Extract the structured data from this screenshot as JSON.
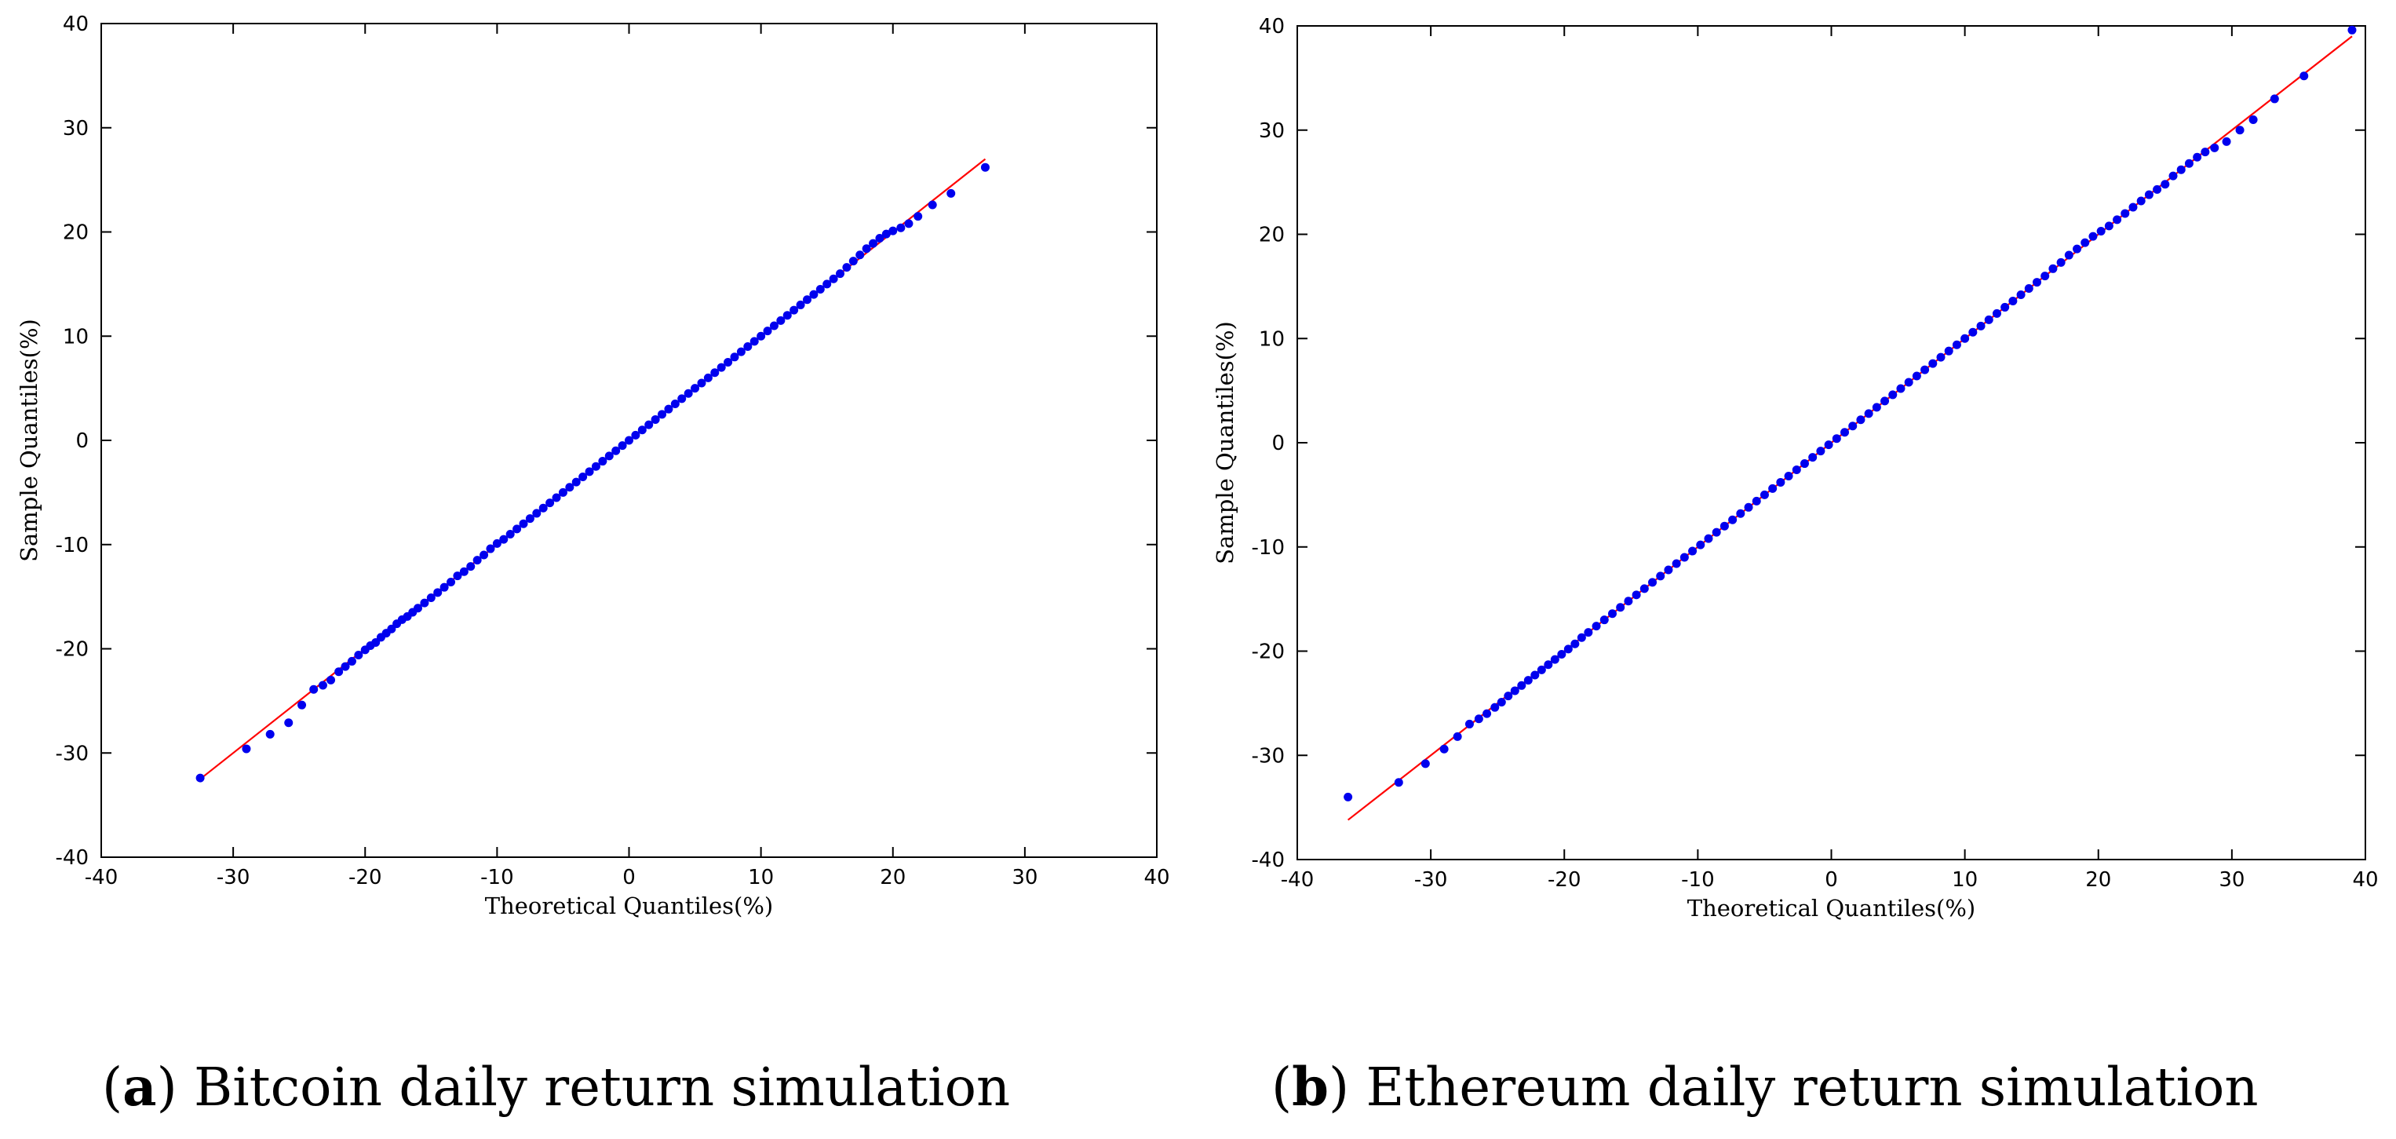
{
  "chart_data": [
    {
      "type": "scatter",
      "panel_letter": "a",
      "caption": "Bitcoin daily return simulation",
      "xlabel": "Theoretical Quantiles(%)",
      "ylabel": "Sample Quantiles(%)",
      "xlim": [
        -40,
        40
      ],
      "ylim": [
        -40,
        40
      ],
      "xticks": [
        -40,
        -30,
        -20,
        -10,
        0,
        10,
        20,
        30,
        40
      ],
      "yticks": [
        -40,
        -30,
        -20,
        -10,
        0,
        10,
        20,
        30,
        40
      ],
      "grid": false,
      "reference_line": {
        "x": [
          -32.5,
          27.0
        ],
        "y": [
          -32.5,
          27.0
        ],
        "color": "#ff0000"
      },
      "point_color": "#0000ee",
      "points": [
        [
          -32.5,
          -32.4
        ],
        [
          -29.0,
          -29.6
        ],
        [
          -27.2,
          -28.2
        ],
        [
          -25.8,
          -27.1
        ],
        [
          -24.8,
          -25.4
        ],
        [
          -23.9,
          -23.9
        ],
        [
          -23.2,
          -23.5
        ],
        [
          -22.6,
          -23.0
        ],
        [
          -22.0,
          -22.2
        ],
        [
          -21.5,
          -21.7
        ],
        [
          -21.0,
          -21.2
        ],
        [
          -20.5,
          -20.6
        ],
        [
          -20.0,
          -20.1
        ],
        [
          -19.6,
          -19.7
        ],
        [
          -19.2,
          -19.4
        ],
        [
          -18.8,
          -18.9
        ],
        [
          -18.4,
          -18.5
        ],
        [
          -18.0,
          -18.1
        ],
        [
          -17.6,
          -17.6
        ],
        [
          -17.2,
          -17.2
        ],
        [
          -16.8,
          -16.9
        ],
        [
          -16.4,
          -16.5
        ],
        [
          -16.0,
          -16.1
        ],
        [
          -15.5,
          -15.6
        ],
        [
          -15.0,
          -15.1
        ],
        [
          -14.5,
          -14.6
        ],
        [
          -14.0,
          -14.1
        ],
        [
          -13.5,
          -13.6
        ],
        [
          -13.0,
          -13.0
        ],
        [
          -12.5,
          -12.6
        ],
        [
          -12.0,
          -12.1
        ],
        [
          -11.5,
          -11.5
        ],
        [
          -11.0,
          -11.0
        ],
        [
          -10.5,
          -10.4
        ],
        [
          -10.0,
          -9.9
        ],
        [
          -9.5,
          -9.5
        ],
        [
          -9.0,
          -9.0
        ],
        [
          -8.5,
          -8.5
        ],
        [
          -8.0,
          -8.0
        ],
        [
          -7.5,
          -7.5
        ],
        [
          -7.0,
          -7.0
        ],
        [
          -6.5,
          -6.5
        ],
        [
          -6.0,
          -6.0
        ],
        [
          -5.5,
          -5.5
        ],
        [
          -5.0,
          -5.0
        ],
        [
          -4.5,
          -4.5
        ],
        [
          -4.0,
          -4.0
        ],
        [
          -3.5,
          -3.5
        ],
        [
          -3.0,
          -3.0
        ],
        [
          -2.5,
          -2.5
        ],
        [
          -2.0,
          -2.0
        ],
        [
          -1.5,
          -1.5
        ],
        [
          -1.0,
          -1.0
        ],
        [
          -0.5,
          -0.5
        ],
        [
          0.0,
          0.0
        ],
        [
          0.5,
          0.5
        ],
        [
          1.0,
          1.0
        ],
        [
          1.5,
          1.5
        ],
        [
          2.0,
          2.0
        ],
        [
          2.5,
          2.5
        ],
        [
          3.0,
          3.0
        ],
        [
          3.5,
          3.5
        ],
        [
          4.0,
          4.0
        ],
        [
          4.5,
          4.5
        ],
        [
          5.0,
          5.0
        ],
        [
          5.5,
          5.5
        ],
        [
          6.0,
          6.0
        ],
        [
          6.5,
          6.5
        ],
        [
          7.0,
          7.0
        ],
        [
          7.5,
          7.5
        ],
        [
          8.0,
          8.0
        ],
        [
          8.5,
          8.5
        ],
        [
          9.0,
          9.0
        ],
        [
          9.5,
          9.5
        ],
        [
          10.0,
          10.0
        ],
        [
          10.5,
          10.5
        ],
        [
          11.0,
          11.0
        ],
        [
          11.5,
          11.5
        ],
        [
          12.0,
          12.0
        ],
        [
          12.5,
          12.5
        ],
        [
          13.0,
          13.0
        ],
        [
          13.5,
          13.5
        ],
        [
          14.0,
          14.0
        ],
        [
          14.5,
          14.5
        ],
        [
          15.0,
          15.0
        ],
        [
          15.5,
          15.5
        ],
        [
          16.0,
          16.0
        ],
        [
          16.5,
          16.6
        ],
        [
          17.0,
          17.2
        ],
        [
          17.5,
          17.8
        ],
        [
          18.0,
          18.4
        ],
        [
          18.5,
          18.9
        ],
        [
          19.0,
          19.4
        ],
        [
          19.5,
          19.8
        ],
        [
          20.0,
          20.1
        ],
        [
          20.6,
          20.4
        ],
        [
          21.2,
          20.8
        ],
        [
          21.9,
          21.5
        ],
        [
          23.0,
          22.6
        ],
        [
          24.4,
          23.7
        ],
        [
          27.0,
          26.2
        ]
      ]
    },
    {
      "type": "scatter",
      "panel_letter": "b",
      "caption": "Ethereum daily return simulation",
      "xlabel": "Theoretical Quantiles(%)",
      "ylabel": "Sample Quantiles(%)",
      "xlim": [
        -40,
        40
      ],
      "ylim": [
        -40,
        40
      ],
      "xticks": [
        -40,
        -30,
        -20,
        -10,
        0,
        10,
        20,
        30,
        40
      ],
      "yticks": [
        -40,
        -30,
        -20,
        -10,
        0,
        10,
        20,
        30,
        40
      ],
      "grid": false,
      "reference_line": {
        "x": [
          -36.2,
          39.0
        ],
        "y": [
          -36.2,
          39.0
        ],
        "color": "#ff0000"
      },
      "point_color": "#0000ee",
      "points": [
        [
          -36.2,
          -34.0
        ],
        [
          -32.4,
          -32.6
        ],
        [
          -30.4,
          -30.8
        ],
        [
          -29.0,
          -29.4
        ],
        [
          -28.0,
          -28.2
        ],
        [
          -27.1,
          -27.0
        ],
        [
          -26.4,
          -26.5
        ],
        [
          -25.8,
          -26.0
        ],
        [
          -25.2,
          -25.4
        ],
        [
          -24.7,
          -24.9
        ],
        [
          -24.2,
          -24.3
        ],
        [
          -23.7,
          -23.8
        ],
        [
          -23.2,
          -23.3
        ],
        [
          -22.7,
          -22.8
        ],
        [
          -22.2,
          -22.3
        ],
        [
          -21.7,
          -21.8
        ],
        [
          -21.2,
          -21.3
        ],
        [
          -20.7,
          -20.8
        ],
        [
          -20.2,
          -20.3
        ],
        [
          -19.7,
          -19.8
        ],
        [
          -19.2,
          -19.3
        ],
        [
          -18.7,
          -18.7
        ],
        [
          -18.2,
          -18.2
        ],
        [
          -17.6,
          -17.6
        ],
        [
          -17.0,
          -17.0
        ],
        [
          -16.4,
          -16.4
        ],
        [
          -15.8,
          -15.8
        ],
        [
          -15.2,
          -15.2
        ],
        [
          -14.6,
          -14.6
        ],
        [
          -14.0,
          -14.0
        ],
        [
          -13.4,
          -13.4
        ],
        [
          -12.8,
          -12.8
        ],
        [
          -12.2,
          -12.2
        ],
        [
          -11.6,
          -11.6
        ],
        [
          -11.0,
          -11.0
        ],
        [
          -10.4,
          -10.4
        ],
        [
          -9.8,
          -9.8
        ],
        [
          -9.2,
          -9.2
        ],
        [
          -8.6,
          -8.6
        ],
        [
          -8.0,
          -8.0
        ],
        [
          -7.4,
          -7.4
        ],
        [
          -6.8,
          -6.8
        ],
        [
          -6.2,
          -6.2
        ],
        [
          -5.6,
          -5.6
        ],
        [
          -5.0,
          -5.0
        ],
        [
          -4.4,
          -4.4
        ],
        [
          -3.8,
          -3.8
        ],
        [
          -3.2,
          -3.2
        ],
        [
          -2.6,
          -2.6
        ],
        [
          -2.0,
          -2.0
        ],
        [
          -1.4,
          -1.4
        ],
        [
          -0.8,
          -0.8
        ],
        [
          -0.2,
          -0.2
        ],
        [
          0.4,
          0.4
        ],
        [
          1.0,
          1.0
        ],
        [
          1.6,
          1.6
        ],
        [
          2.2,
          2.2
        ],
        [
          2.8,
          2.8
        ],
        [
          3.4,
          3.4
        ],
        [
          4.0,
          4.0
        ],
        [
          4.6,
          4.6
        ],
        [
          5.2,
          5.2
        ],
        [
          5.8,
          5.8
        ],
        [
          6.4,
          6.4
        ],
        [
          7.0,
          7.0
        ],
        [
          7.6,
          7.6
        ],
        [
          8.2,
          8.2
        ],
        [
          8.8,
          8.8
        ],
        [
          9.4,
          9.4
        ],
        [
          10.0,
          10.0
        ],
        [
          10.6,
          10.6
        ],
        [
          11.2,
          11.2
        ],
        [
          11.8,
          11.8
        ],
        [
          12.4,
          12.4
        ],
        [
          13.0,
          13.0
        ],
        [
          13.6,
          13.6
        ],
        [
          14.2,
          14.2
        ],
        [
          14.8,
          14.8
        ],
        [
          15.4,
          15.4
        ],
        [
          16.0,
          16.0
        ],
        [
          16.6,
          16.7
        ],
        [
          17.2,
          17.3
        ],
        [
          17.8,
          18.0
        ],
        [
          18.4,
          18.6
        ],
        [
          19.0,
          19.2
        ],
        [
          19.6,
          19.8
        ],
        [
          20.2,
          20.3
        ],
        [
          20.8,
          20.8
        ],
        [
          21.4,
          21.4
        ],
        [
          22.0,
          22.0
        ],
        [
          22.6,
          22.6
        ],
        [
          23.2,
          23.2
        ],
        [
          23.8,
          23.8
        ],
        [
          24.4,
          24.3
        ],
        [
          25.0,
          24.8
        ],
        [
          25.6,
          25.6
        ],
        [
          26.2,
          26.2
        ],
        [
          26.8,
          26.8
        ],
        [
          27.4,
          27.4
        ],
        [
          28.0,
          27.9
        ],
        [
          28.7,
          28.3
        ],
        [
          29.6,
          28.9
        ],
        [
          30.6,
          30.0
        ],
        [
          31.6,
          31.0
        ],
        [
          33.2,
          33.0
        ],
        [
          35.4,
          35.2
        ],
        [
          39.0,
          39.6
        ]
      ]
    }
  ]
}
